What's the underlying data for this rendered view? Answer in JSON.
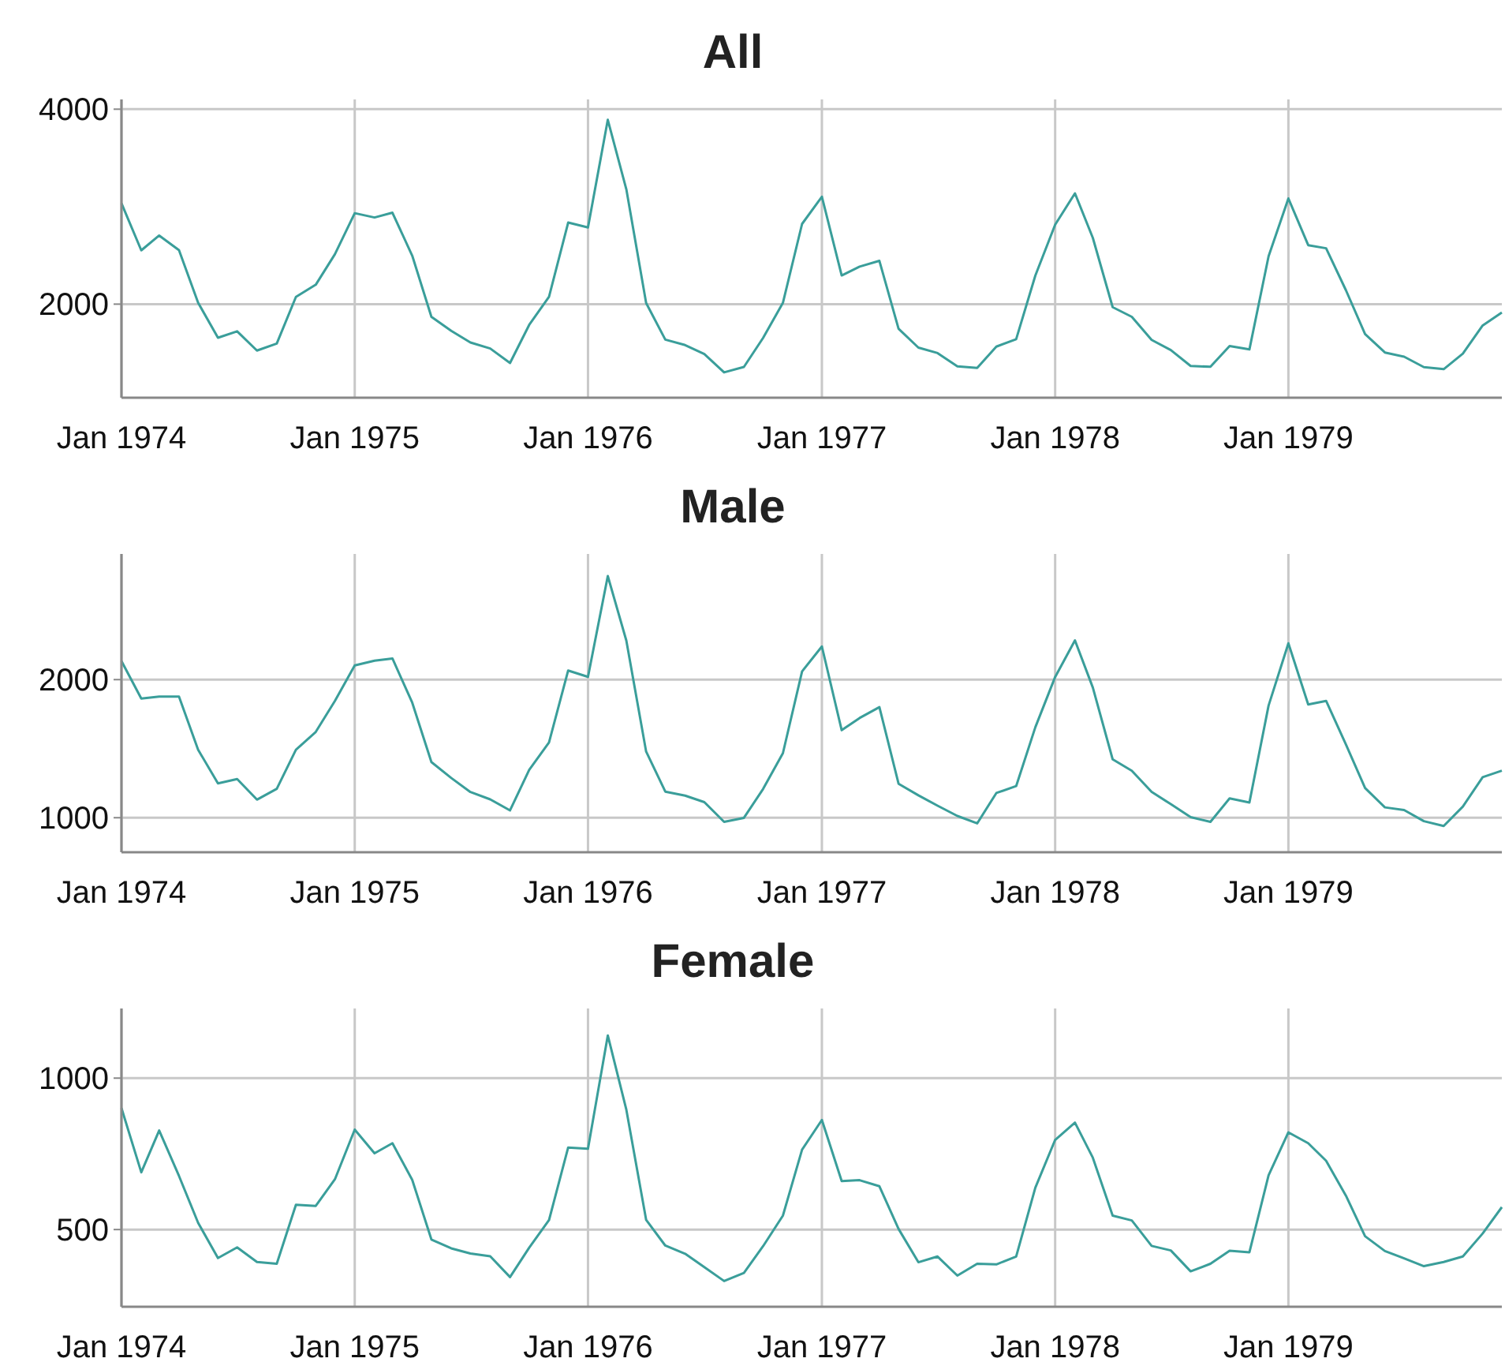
{
  "chart_data": [
    {
      "type": "line",
      "title": "All",
      "x": [
        "1974-01",
        "1974-02",
        "1974-03",
        "1974-04",
        "1974-05",
        "1974-06",
        "1974-07",
        "1974-08",
        "1974-09",
        "1974-10",
        "1974-11",
        "1974-12",
        "1975-01",
        "1975-02",
        "1975-03",
        "1975-04",
        "1975-05",
        "1975-06",
        "1975-07",
        "1975-08",
        "1975-09",
        "1975-10",
        "1975-11",
        "1975-12",
        "1976-01",
        "1976-02",
        "1976-03",
        "1976-04",
        "1976-05",
        "1976-06",
        "1976-07",
        "1976-08",
        "1976-09",
        "1976-10",
        "1976-11",
        "1976-12",
        "1977-01",
        "1977-02",
        "1977-03",
        "1977-04",
        "1977-05",
        "1977-06",
        "1977-07",
        "1977-08",
        "1977-09",
        "1977-10",
        "1977-11",
        "1977-12",
        "1978-01",
        "1978-02",
        "1978-03",
        "1978-04",
        "1978-05",
        "1978-06",
        "1978-07",
        "1978-08",
        "1978-09",
        "1978-10",
        "1978-11",
        "1978-12",
        "1979-01",
        "1979-02",
        "1979-03",
        "1979-04",
        "1979-05",
        "1979-06",
        "1979-07",
        "1979-08",
        "1979-09",
        "1979-10",
        "1979-11",
        "1979-12"
      ],
      "series": [
        {
          "color": "#3a9e9a",
          "values": [
            3035,
            2552,
            2704,
            2554,
            2014,
            1655,
            1721,
            1524,
            1596,
            2074,
            2199,
            2512,
            2933,
            2889,
            2938,
            2497,
            1870,
            1726,
            1607,
            1545,
            1396,
            1787,
            2076,
            2837,
            2787,
            3891,
            3179,
            2011,
            1636,
            1580,
            1489,
            1300,
            1356,
            1653,
            2013,
            2823,
            3102,
            2294,
            2385,
            2444,
            1748,
            1554,
            1498,
            1361,
            1346,
            1564,
            1640,
            2293,
            2815,
            3137,
            2679,
            1969,
            1870,
            1633,
            1529,
            1366,
            1357,
            1570,
            1535,
            2491,
            3084,
            2605,
            2573,
            2143,
            1693,
            1504,
            1461,
            1354,
            1333,
            1492,
            1781,
            1915
          ]
        }
      ],
      "xlim": [
        "1974-01",
        "1979-12"
      ],
      "xticks": [
        {
          "value": "1974-01",
          "label": "Jan 1974"
        },
        {
          "value": "1975-01",
          "label": "Jan 1975"
        },
        {
          "value": "1976-01",
          "label": "Jan 1976"
        },
        {
          "value": "1977-01",
          "label": "Jan 1977"
        },
        {
          "value": "1978-01",
          "label": "Jan 1978"
        },
        {
          "value": "1979-01",
          "label": "Jan 1979"
        }
      ],
      "ylim": [
        1040,
        4100
      ],
      "yticks": [
        2000,
        4000
      ],
      "grid": true
    },
    {
      "type": "line",
      "title": "Male",
      "x": [
        "1974-01",
        "1974-02",
        "1974-03",
        "1974-04",
        "1974-05",
        "1974-06",
        "1974-07",
        "1974-08",
        "1974-09",
        "1974-10",
        "1974-11",
        "1974-12",
        "1975-01",
        "1975-02",
        "1975-03",
        "1975-04",
        "1975-05",
        "1975-06",
        "1975-07",
        "1975-08",
        "1975-09",
        "1975-10",
        "1975-11",
        "1975-12",
        "1976-01",
        "1976-02",
        "1976-03",
        "1976-04",
        "1976-05",
        "1976-06",
        "1976-07",
        "1976-08",
        "1976-09",
        "1976-10",
        "1976-11",
        "1976-12",
        "1977-01",
        "1977-02",
        "1977-03",
        "1977-04",
        "1977-05",
        "1977-06",
        "1977-07",
        "1977-08",
        "1977-09",
        "1977-10",
        "1977-11",
        "1977-12",
        "1978-01",
        "1978-02",
        "1978-03",
        "1978-04",
        "1978-05",
        "1978-06",
        "1978-07",
        "1978-08",
        "1978-09",
        "1978-10",
        "1978-11",
        "1978-12",
        "1979-01",
        "1979-02",
        "1979-03",
        "1979-04",
        "1979-05",
        "1979-06",
        "1979-07",
        "1979-08",
        "1979-09",
        "1979-10",
        "1979-11",
        "1979-12"
      ],
      "series": [
        {
          "color": "#3a9e9a",
          "values": [
            2134,
            1863,
            1877,
            1877,
            1492,
            1249,
            1280,
            1131,
            1209,
            1492,
            1621,
            1846,
            2103,
            2137,
            2153,
            1833,
            1403,
            1288,
            1186,
            1133,
            1053,
            1347,
            1545,
            2066,
            2020,
            2750,
            2283,
            1479,
            1189,
            1160,
            1113,
            970,
            999,
            1208,
            1467,
            2059,
            2240,
            1634,
            1722,
            1801,
            1246,
            1162,
            1087,
            1013,
            959,
            1179,
            1229,
            1655,
            2019,
            2284,
            1942,
            1423,
            1340,
            1187,
            1098,
            1004,
            970,
            1140,
            1110,
            1812,
            2263,
            1820,
            1846,
            1531,
            1215,
            1075,
            1056,
            975,
            940,
            1081,
            1294,
            1341
          ]
        }
      ],
      "xlim": [
        "1974-01",
        "1979-12"
      ],
      "xticks": [
        {
          "value": "1974-01",
          "label": "Jan 1974"
        },
        {
          "value": "1975-01",
          "label": "Jan 1975"
        },
        {
          "value": "1976-01",
          "label": "Jan 1976"
        },
        {
          "value": "1977-01",
          "label": "Jan 1977"
        },
        {
          "value": "1978-01",
          "label": "Jan 1978"
        },
        {
          "value": "1979-01",
          "label": "Jan 1979"
        }
      ],
      "ylim": [
        750,
        2910
      ],
      "yticks": [
        1000,
        2000
      ],
      "grid": true
    },
    {
      "type": "line",
      "title": "Female",
      "x": [
        "1974-01",
        "1974-02",
        "1974-03",
        "1974-04",
        "1974-05",
        "1974-06",
        "1974-07",
        "1974-08",
        "1974-09",
        "1974-10",
        "1974-11",
        "1974-12",
        "1975-01",
        "1975-02",
        "1975-03",
        "1975-04",
        "1975-05",
        "1975-06",
        "1975-07",
        "1975-08",
        "1975-09",
        "1975-10",
        "1975-11",
        "1975-12",
        "1976-01",
        "1976-02",
        "1976-03",
        "1976-04",
        "1976-05",
        "1976-06",
        "1976-07",
        "1976-08",
        "1976-09",
        "1976-10",
        "1976-11",
        "1976-12",
        "1977-01",
        "1977-02",
        "1977-03",
        "1977-04",
        "1977-05",
        "1977-06",
        "1977-07",
        "1977-08",
        "1977-09",
        "1977-10",
        "1977-11",
        "1977-12",
        "1978-01",
        "1978-02",
        "1978-03",
        "1978-04",
        "1978-05",
        "1978-06",
        "1978-07",
        "1978-08",
        "1978-09",
        "1978-10",
        "1978-11",
        "1978-12",
        "1979-01",
        "1979-02",
        "1979-03",
        "1979-04",
        "1979-05",
        "1979-06",
        "1979-07",
        "1979-08",
        "1979-09",
        "1979-10",
        "1979-11",
        "1979-12"
      ],
      "series": [
        {
          "color": "#3a9e9a",
          "values": [
            901,
            689,
            827,
            677,
            522,
            406,
            441,
            393,
            387,
            582,
            578,
            666,
            830,
            752,
            785,
            664,
            467,
            438,
            421,
            412,
            343,
            440,
            531,
            771,
            767,
            1141,
            896,
            532,
            447,
            420,
            376,
            330,
            357,
            445,
            546,
            764,
            862,
            660,
            663,
            643,
            502,
            392,
            411,
            348,
            387,
            385,
            411,
            638,
            796,
            853,
            737,
            546,
            530,
            446,
            431,
            362,
            387,
            430,
            425,
            679,
            821,
            785,
            727,
            612,
            478,
            429,
            405,
            379,
            393,
            411,
            487,
            574
          ]
        }
      ],
      "xlim": [
        "1974-01",
        "1979-12"
      ],
      "xticks": [
        {
          "value": "1974-01",
          "label": "Jan 1974"
        },
        {
          "value": "1975-01",
          "label": "Jan 1975"
        },
        {
          "value": "1976-01",
          "label": "Jan 1976"
        },
        {
          "value": "1977-01",
          "label": "Jan 1977"
        },
        {
          "value": "1978-01",
          "label": "Jan 1978"
        },
        {
          "value": "1979-01",
          "label": "Jan 1979"
        }
      ],
      "ylim": [
        245,
        1230
      ],
      "yticks": [
        500,
        1000
      ],
      "grid": true
    }
  ]
}
